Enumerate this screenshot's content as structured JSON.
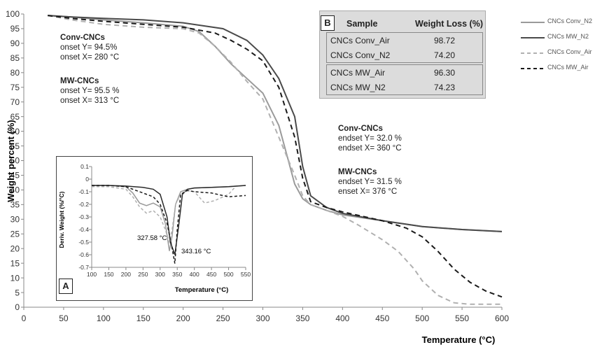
{
  "chart_data": [
    {
      "type": "line",
      "xlabel": "Temperature (°C)",
      "ylabel": "Weight percent (%)",
      "xlim": [
        0,
        600
      ],
      "ylim": [
        0,
        100
      ],
      "xticks": [
        "0",
        "50",
        "100",
        "150",
        "200",
        "250",
        "300",
        "350",
        "400",
        "450",
        "500",
        "550",
        "600"
      ],
      "yticks": [
        "0",
        "5",
        "10",
        "15",
        "20",
        "25",
        "30",
        "35",
        "40",
        "45",
        "50",
        "55",
        "60",
        "65",
        "70",
        "75",
        "80",
        "85",
        "90",
        "95",
        "100"
      ],
      "grid": false,
      "legend_position": "right",
      "series": [
        {
          "name": "CNCs Conv_N2",
          "color": "#9a9a9a",
          "dash": "solid",
          "x": [
            30,
            60,
            100,
            150,
            200,
            220,
            240,
            260,
            280,
            300,
            320,
            330,
            340,
            350,
            360,
            380,
            400,
            450,
            500,
            550,
            600
          ],
          "y": [
            99.5,
            99.0,
            98.0,
            97.0,
            95.8,
            94.0,
            89.0,
            83.0,
            78.0,
            73.0,
            62.0,
            52.0,
            42.0,
            37.0,
            35.0,
            33.0,
            31.5,
            29.5,
            27.5,
            26.5,
            25.8
          ]
        },
        {
          "name": "CNCs MW_N2",
          "color": "#4a4a4a",
          "dash": "solid",
          "x": [
            30,
            60,
            100,
            150,
            200,
            250,
            280,
            300,
            320,
            340,
            350,
            360,
            380,
            400,
            450,
            500,
            550,
            600
          ],
          "y": [
            99.5,
            99.0,
            98.5,
            98.0,
            97.0,
            95.0,
            91.0,
            86.0,
            78.0,
            65.0,
            48.0,
            38.0,
            34.0,
            32.0,
            29.5,
            27.5,
            26.5,
            25.8
          ]
        },
        {
          "name": "CNCs Conv_Air",
          "color": "#b0b0b0",
          "dash": "dashed",
          "x": [
            30,
            60,
            100,
            150,
            200,
            220,
            240,
            260,
            280,
            300,
            320,
            340,
            350,
            360,
            380,
            400,
            420,
            450,
            470,
            490,
            500,
            520,
            540,
            560,
            600
          ],
          "y": [
            99.5,
            98.0,
            96.5,
            95.5,
            95.0,
            93.5,
            89.0,
            83.5,
            77.0,
            71.0,
            58.0,
            45.0,
            38.0,
            35.0,
            33.0,
            31.0,
            28.0,
            23.0,
            19.0,
            13.0,
            9.0,
            4.0,
            1.5,
            1.0,
            1.0
          ]
        },
        {
          "name": "CNCs MW_Air",
          "color": "#1a1a1a",
          "dash": "dashed",
          "x": [
            30,
            60,
            100,
            150,
            200,
            240,
            260,
            280,
            300,
            320,
            340,
            350,
            360,
            380,
            400,
            450,
            480,
            500,
            520,
            540,
            560,
            580,
            600
          ],
          "y": [
            99.5,
            98.5,
            97.5,
            96.5,
            95.5,
            93.5,
            91.0,
            88.0,
            84.0,
            75.0,
            58.0,
            44.0,
            36.0,
            34.0,
            32.5,
            29.5,
            27.0,
            24.0,
            19.0,
            13.0,
            8.5,
            5.5,
            3.5
          ]
        }
      ]
    },
    {
      "type": "line",
      "panel": "A",
      "xlabel": "Temperature (°C)",
      "ylabel": "Deriv. Weight (%/°C)",
      "xlim": [
        100,
        550
      ],
      "ylim": [
        -0.7,
        0.1
      ],
      "xticks": [
        "100",
        "150",
        "200",
        "250",
        "300",
        "350",
        "400",
        "450",
        "500",
        "550"
      ],
      "yticks": [
        "0.1",
        "0",
        "-0.1",
        "-0.2",
        "-0.3",
        "-0.4",
        "-0.5",
        "-0.6",
        "-0.7"
      ],
      "annotations": [
        "327.58 °C",
        "343.16 °C"
      ],
      "series": [
        {
          "name": "CNCs Conv_N2",
          "color": "#9a9a9a",
          "dash": "solid",
          "x": [
            100,
            150,
            200,
            220,
            240,
            260,
            280,
            300,
            315,
            327,
            335,
            345,
            360,
            380,
            400,
            450,
            500,
            550
          ],
          "y": [
            -0.05,
            -0.05,
            -0.06,
            -0.11,
            -0.19,
            -0.21,
            -0.19,
            -0.22,
            -0.35,
            -0.57,
            -0.45,
            -0.2,
            -0.1,
            -0.08,
            -0.07,
            -0.065,
            -0.06,
            -0.05
          ]
        },
        {
          "name": "CNCs MW_N2",
          "color": "#2a2a2a",
          "dash": "solid",
          "x": [
            100,
            150,
            200,
            250,
            280,
            300,
            320,
            330,
            343,
            355,
            365,
            380,
            400,
            450,
            500,
            550
          ],
          "y": [
            -0.05,
            -0.05,
            -0.055,
            -0.065,
            -0.08,
            -0.12,
            -0.3,
            -0.5,
            -0.6,
            -0.35,
            -0.12,
            -0.08,
            -0.07,
            -0.065,
            -0.06,
            -0.05
          ]
        },
        {
          "name": "CNCs Conv_Air",
          "color": "#b0b0b0",
          "dash": "dashed",
          "x": [
            100,
            150,
            200,
            220,
            240,
            260,
            280,
            300,
            315,
            327,
            335,
            345,
            360,
            380,
            400,
            430,
            460,
            500,
            520
          ],
          "y": [
            -0.06,
            -0.06,
            -0.08,
            -0.14,
            -0.22,
            -0.27,
            -0.25,
            -0.3,
            -0.4,
            -0.5,
            -0.4,
            -0.2,
            -0.12,
            -0.09,
            -0.1,
            -0.19,
            -0.17,
            -0.12,
            -0.06
          ]
        },
        {
          "name": "CNCs MW_Air",
          "color": "#1a1a1a",
          "dash": "dashed",
          "x": [
            100,
            150,
            200,
            240,
            280,
            300,
            320,
            335,
            343,
            350,
            360,
            380,
            400,
            450,
            500,
            550
          ],
          "y": [
            -0.05,
            -0.05,
            -0.06,
            -0.1,
            -0.14,
            -0.2,
            -0.35,
            -0.55,
            -0.67,
            -0.4,
            -0.12,
            -0.09,
            -0.1,
            -0.11,
            -0.14,
            -0.13
          ]
        }
      ]
    }
  ],
  "annotations": {
    "conv_onset": {
      "title": "Conv-CNCs",
      "line1": "onset Y= 94.5%",
      "line2": "onset X= 280 °C"
    },
    "mw_onset": {
      "title": "MW-CNCs",
      "line1": "onset Y= 95.5 %",
      "line2": "onset X= 313 °C"
    },
    "conv_endset": {
      "title": "Conv-CNCs",
      "line1": "endset Y= 32.0 %",
      "line2": "endset X= 360 °C"
    },
    "mw_endset": {
      "title": "MW-CNCs",
      "line1": "endset Y= 31.5 %",
      "line2": "enset X= 376 °C"
    }
  },
  "inset": {
    "label": "A"
  },
  "table": {
    "label": "B",
    "headers": [
      "Sample",
      "Weight Loss (%)"
    ],
    "rows": [
      {
        "sample": "CNCs Conv_Air",
        "value": "98.72"
      },
      {
        "sample": "CNCs Conv_N2",
        "value": "74.20"
      },
      {
        "sample": "CNCs MW_Air",
        "value": "96.30"
      },
      {
        "sample": "CNCs MW_N2",
        "value": "74.23"
      }
    ]
  },
  "legend": [
    "CNCs Conv_N2",
    "CNCs MW_N2",
    "CNCs Conv_Air",
    "CNCs MW_Air"
  ]
}
